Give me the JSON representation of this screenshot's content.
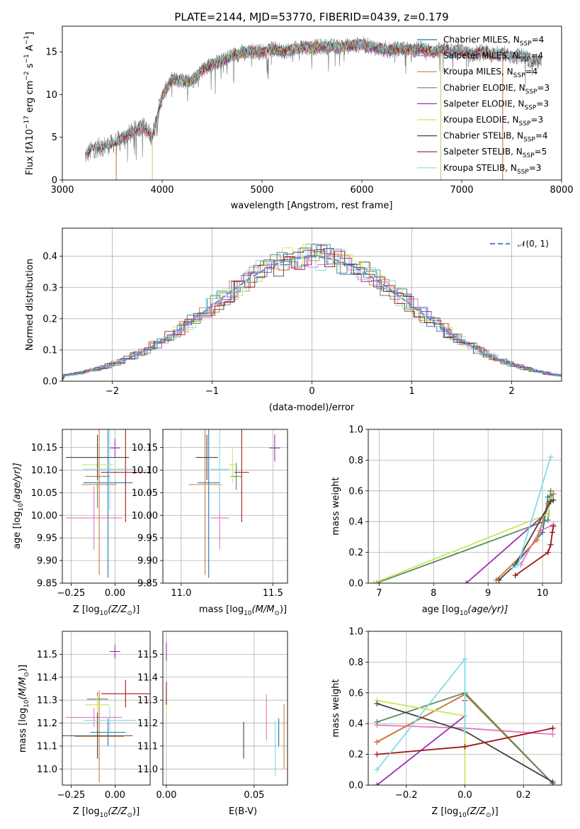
{
  "colors": {
    "Chabrier MILES": "#1f77b4",
    "Salpeter MILES": "#e377c2",
    "Kroupa MILES": "#d9782d",
    "Chabrier ELODIE": "#5f8a5f",
    "Salpeter ELODIE": "#9b30b0",
    "Kroupa ELODIE": "#c8e85a",
    "Chabrier STELIB": "#444444",
    "Salpeter STELIB": "#a01818",
    "Kroupa STELIB": "#80dde6",
    "pdf_line": "#5b8ee0"
  },
  "chart_data": [
    {
      "id": "spectrum",
      "type": "line",
      "title": "PLATE=2144, MJD=53770, FIBERID=0439, z=0.179",
      "xlabel": "wavelength [Angstrom, rest frame]",
      "ylabel_parts": [
        "Flux [f",
        "λ",
        "10",
        "−17",
        " erg cm",
        "−2",
        " s",
        "−1",
        " A",
        "−1",
        "]"
      ],
      "xlim": [
        3000,
        8000
      ],
      "ylim": [
        0,
        18
      ],
      "xticks": [
        "3000",
        "4000",
        "5000",
        "6000",
        "7000",
        "8000"
      ],
      "yticks": [
        "0",
        "5",
        "10",
        "15"
      ],
      "legend_position": "top-right",
      "legend": [
        {
          "label": "Chabrier MILES, N",
          "sub": "SSP",
          "tail": "=4"
        },
        {
          "label": "Salpeter MILES, N",
          "sub": "SSP",
          "tail": "=4"
        },
        {
          "label": "Kroupa MILES, N",
          "sub": "SSP",
          "tail": "=4"
        },
        {
          "label": "Chabrier ELODIE, N",
          "sub": "SSP",
          "tail": "=3"
        },
        {
          "label": "Salpeter ELODIE, N",
          "sub": "SSP",
          "tail": "=3"
        },
        {
          "label": "Kroupa ELODIE, N",
          "sub": "SSP",
          "tail": "=3"
        },
        {
          "label": "Chabrier STELIB, N",
          "sub": "SSP",
          "tail": "=4"
        },
        {
          "label": "Salpeter STELIB, N",
          "sub": "SSP",
          "tail": "=5"
        },
        {
          "label": "Kroupa STELIB, N",
          "sub": "SSP",
          "tail": "=3"
        }
      ],
      "data_points": {
        "x": [
          3230,
          3300,
          3400,
          3500,
          3600,
          3700,
          3800,
          3900,
          4000,
          4100,
          4200,
          4300,
          4400,
          4500,
          4600,
          4700,
          4800,
          4900,
          5000,
          5100,
          5200,
          5300,
          5400,
          5500,
          5600,
          5700,
          5800,
          5900,
          6000,
          6100,
          6200,
          6300,
          6400,
          6500,
          6600,
          6700,
          6800,
          6900,
          7000,
          7100,
          7200,
          7300,
          7400,
          7500,
          7600,
          7700,
          7800
        ],
        "y": [
          2.8,
          3.6,
          3.9,
          4.2,
          4.9,
          5.6,
          6.4,
          5.1,
          9.8,
          11.8,
          11.6,
          11.6,
          12.9,
          13.6,
          13.9,
          14.6,
          14.9,
          15.1,
          15.0,
          15.3,
          15.1,
          15.2,
          15.6,
          15.5,
          15.6,
          15.6,
          15.6,
          15.7,
          15.9,
          15.6,
          15.3,
          15.2,
          15.4,
          15.2,
          15.4,
          15.0,
          15.2,
          15.1,
          15.1,
          14.6,
          15.0,
          14.6,
          14.9,
          14.4,
          14.6,
          14.0,
          13.8
        ]
      }
    },
    {
      "id": "residuals",
      "type": "histogram",
      "xlabel": "(data-model)/error",
      "ylabel": "Normed distribution",
      "xlim": [
        -2.5,
        2.5
      ],
      "ylim": [
        0,
        0.49
      ],
      "grid": true,
      "xticks": [
        "−2",
        "−1",
        "0",
        "1",
        "2"
      ],
      "yticks": [
        "0.0",
        "0.1",
        "0.2",
        "0.3",
        "0.4"
      ],
      "legend_position": "top-right",
      "legend": "𝒩(0, 1)",
      "bin_width": 0.1,
      "bin_start": -2.5
    },
    {
      "id": "age_vs_Z",
      "type": "scatter",
      "xlabel_parts": [
        "Z [log",
        "10",
        "(Z/Z",
        "⊙",
        ")]"
      ],
      "ylabel_parts": [
        "age  [log",
        "10",
        "(age/yr)]"
      ],
      "xlim": [
        -0.3,
        0.2
      ],
      "ylim": [
        9.85,
        10.19
      ],
      "xticks": [
        "−0.25",
        "0.00"
      ],
      "yticks": [
        "9.85",
        "9.90",
        "9.95",
        "10.00",
        "10.05",
        "10.10",
        "10.15"
      ],
      "grid": true,
      "series": [
        {
          "name": "Chabrier MILES",
          "x": -0.04,
          "y": 10.072,
          "xerr": 0.14,
          "yerr": 0.21
        },
        {
          "name": "Salpeter MILES",
          "x": -0.12,
          "y": 9.994,
          "xerr": 0.16,
          "yerr": 0.07
        },
        {
          "name": "Kroupa MILES",
          "x": -0.09,
          "y": 10.068,
          "xerr": 0.1,
          "yerr": 0.2
        },
        {
          "name": "Chabrier ELODIE",
          "x": -0.1,
          "y": 10.086,
          "xerr": 0.07,
          "yerr": 0.07
        },
        {
          "name": "Salpeter ELODIE",
          "x": 0.0,
          "y": 10.149,
          "xerr": 0.03,
          "yerr": 0.02
        },
        {
          "name": "Kroupa ELODIE",
          "x": -0.1,
          "y": 10.112,
          "xerr": 0.09,
          "yerr": 0.04
        },
        {
          "name": "Chabrier STELIB",
          "x": -0.1,
          "y": 10.128,
          "xerr": 0.18,
          "yerr": 0.05
        },
        {
          "name": "Salpeter STELIB",
          "x": 0.06,
          "y": 10.095,
          "xerr": 0.14,
          "yerr": 0.11
        },
        {
          "name": "Kroupa STELIB",
          "x": -0.03,
          "y": 10.102,
          "xerr": 0.15,
          "yerr": 0.09
        }
      ]
    },
    {
      "id": "age_vs_mass",
      "type": "scatter",
      "xlabel_parts": [
        "mass [log",
        "10",
        "(M/M",
        "⊙",
        ")]"
      ],
      "xlim": [
        10.9,
        11.58
      ],
      "ylim": [
        9.85,
        10.19
      ],
      "xticks": [
        "11.0",
        "11.5"
      ],
      "yticks": [
        "9.85",
        "9.90",
        "9.95",
        "10.00",
        "10.05",
        "10.10",
        "10.15"
      ],
      "grid": true,
      "series": [
        {
          "name": "Chabrier MILES",
          "x": 11.15,
          "y": 10.072,
          "xerr": 0.06,
          "yerr": 0.21
        },
        {
          "name": "Salpeter MILES",
          "x": 11.21,
          "y": 9.994,
          "xerr": 0.05,
          "yerr": 0.07
        },
        {
          "name": "Kroupa MILES",
          "x": 11.13,
          "y": 10.068,
          "xerr": 0.09,
          "yerr": 0.2
        },
        {
          "name": "Chabrier ELODIE",
          "x": 11.3,
          "y": 10.086,
          "xerr": 0.03,
          "yerr": 0.03
        },
        {
          "name": "Salpeter ELODIE",
          "x": 11.51,
          "y": 10.149,
          "xerr": 0.03,
          "yerr": 0.03
        },
        {
          "name": "Kroupa ELODIE",
          "x": 11.28,
          "y": 10.112,
          "xerr": 0.02,
          "yerr": 0.04
        },
        {
          "name": "Chabrier STELIB",
          "x": 11.14,
          "y": 10.128,
          "xerr": 0.06,
          "yerr": 0.05
        },
        {
          "name": "Salpeter STELIB",
          "x": 11.33,
          "y": 10.095,
          "xerr": 0.04,
          "yerr": 0.11
        },
        {
          "name": "Kroupa STELIB",
          "x": 11.21,
          "y": 10.102,
          "xerr": 0.05,
          "yerr": 0.09
        }
      ]
    },
    {
      "id": "mass_weight_vs_age",
      "type": "line",
      "xlabel_parts": [
        "age  [log",
        "10",
        "(age/yr)]"
      ],
      "ylabel": "mass weight",
      "xlim": [
        6.8,
        10.35
      ],
      "ylim": [
        0,
        1
      ],
      "xticks": [
        "7",
        "8",
        "9",
        "10"
      ],
      "yticks": [
        "0.0",
        "0.2",
        "0.4",
        "0.6",
        "0.8",
        "1.0"
      ],
      "grid": true,
      "series": [
        {
          "name": "Chabrier MILES",
          "x": [
            9.5,
            10.0,
            10.1,
            10.2
          ],
          "y": [
            0.12,
            0.33,
            0.56,
            0.58
          ]
        },
        {
          "name": "Salpeter MILES",
          "x": [
            9.6,
            9.95,
            10.2
          ],
          "y": [
            0.12,
            0.34,
            0.38
          ]
        },
        {
          "name": "Kroupa MILES",
          "x": [
            9.15,
            9.9,
            10.1,
            10.2
          ],
          "y": [
            0.02,
            0.28,
            0.52,
            0.58
          ]
        },
        {
          "name": "Chabrier ELODIE",
          "x": [
            6.95,
            10.1,
            10.15
          ],
          "y": [
            0.0,
            0.41,
            0.6
          ]
        },
        {
          "name": "Salpeter ELODIE",
          "x": [
            8.6,
            10.05,
            10.15
          ],
          "y": [
            0.0,
            0.45,
            0.55
          ]
        },
        {
          "name": "Kroupa ELODIE",
          "x": [
            6.9,
            10.1,
            10.15
          ],
          "y": [
            0.0,
            0.45,
            0.55
          ]
        },
        {
          "name": "Chabrier STELIB",
          "x": [
            9.2,
            9.5,
            10.15,
            10.2
          ],
          "y": [
            0.02,
            0.12,
            0.53,
            0.54
          ]
        },
        {
          "name": "Salpeter STELIB",
          "x": [
            9.5,
            10.1,
            10.15,
            10.18,
            10.2
          ],
          "y": [
            0.05,
            0.2,
            0.25,
            0.33,
            0.37
          ]
        },
        {
          "name": "Kroupa STELIB",
          "x": [
            9.45,
            9.55,
            10.15
          ],
          "y": [
            0.1,
            0.12,
            0.82
          ]
        }
      ]
    },
    {
      "id": "mass_vs_Z",
      "type": "scatter",
      "xlabel_parts": [
        "Z [log",
        "10",
        "(Z/Z",
        "⊙",
        ")]"
      ],
      "ylabel_parts": [
        "mass [log",
        "10",
        "(M/M",
        "⊙",
        ")]"
      ],
      "xlim": [
        -0.3,
        0.2
      ],
      "ylim": [
        10.93,
        11.6
      ],
      "xticks": [
        "−0.25",
        "0.00"
      ],
      "yticks": [
        "11.0",
        "11.1",
        "11.2",
        "11.3",
        "11.4",
        "11.5"
      ],
      "grid": true,
      "series": [
        {
          "name": "Chabrier MILES",
          "x": -0.04,
          "y": 11.16,
          "xerr": 0.1,
          "yerr": 0.06
        },
        {
          "name": "Salpeter MILES",
          "x": -0.12,
          "y": 11.225,
          "xerr": 0.16,
          "yerr": 0.04
        },
        {
          "name": "Kroupa MILES",
          "x": -0.09,
          "y": 11.142,
          "xerr": 0.14,
          "yerr": 0.2
        },
        {
          "name": "Chabrier ELODIE",
          "x": -0.1,
          "y": 11.305,
          "xerr": 0.06,
          "yerr": 0.03
        },
        {
          "name": "Salpeter ELODIE",
          "x": 0.0,
          "y": 11.512,
          "xerr": 0.03,
          "yerr": 0.03
        },
        {
          "name": "Kroupa ELODIE",
          "x": -0.1,
          "y": 11.28,
          "xerr": 0.07,
          "yerr": 0.04
        },
        {
          "name": "Chabrier STELIB",
          "x": -0.1,
          "y": 11.145,
          "xerr": 0.2,
          "yerr": 0.1
        },
        {
          "name": "Salpeter STELIB",
          "x": 0.06,
          "y": 11.328,
          "xerr": 0.14,
          "yerr": 0.06
        },
        {
          "name": "Kroupa STELIB",
          "x": -0.03,
          "y": 11.212,
          "xerr": 0.15,
          "yerr": 0.06
        }
      ]
    },
    {
      "id": "mass_vs_ebv",
      "type": "scatter",
      "xlabel": "E(B-V)",
      "xlim": [
        -0.002,
        0.069
      ],
      "ylim": [
        10.93,
        11.6
      ],
      "xticks": [
        "0.00",
        "0.05"
      ],
      "yticks": [
        "11.0",
        "11.1",
        "11.2",
        "11.3",
        "11.4",
        "11.5"
      ],
      "grid": true,
      "series": [
        {
          "name": "Chabrier MILES",
          "x": 0.064,
          "y": 11.16,
          "xerr": 0.0,
          "yerr": 0.06
        },
        {
          "name": "Salpeter MILES",
          "x": 0.057,
          "y": 11.225,
          "xerr": 0.0,
          "yerr": 0.1
        },
        {
          "name": "Kroupa MILES",
          "x": 0.067,
          "y": 11.142,
          "xerr": 0.0,
          "yerr": 0.14
        },
        {
          "name": "Chabrier ELODIE",
          "x": 0.0,
          "y": 11.305,
          "xerr": 0.0,
          "yerr": 0.03
        },
        {
          "name": "Salpeter ELODIE",
          "x": 0.0,
          "y": 11.512,
          "xerr": 0.0,
          "yerr": 0.04
        },
        {
          "name": "Kroupa ELODIE",
          "x": 0.0,
          "y": 11.28,
          "xerr": 0.0,
          "yerr": 0.03
        },
        {
          "name": "Chabrier STELIB",
          "x": 0.044,
          "y": 11.125,
          "xerr": 0.0,
          "yerr": 0.08
        },
        {
          "name": "Salpeter STELIB",
          "x": 0.0,
          "y": 11.33,
          "xerr": 0.0,
          "yerr": 0.05
        },
        {
          "name": "Kroupa STELIB",
          "x": 0.062,
          "y": 11.09,
          "xerr": 0.0,
          "yerr": 0.12
        }
      ]
    },
    {
      "id": "mass_weight_vs_Z",
      "type": "line",
      "xlabel_parts": [
        "Z [log",
        "10",
        "(Z/Z",
        "⊙",
        ")]"
      ],
      "ylabel": "mass weight",
      "xlim": [
        -0.33,
        0.33
      ],
      "ylim": [
        0,
        1
      ],
      "xticks": [
        "−0.2",
        "0.0",
        "0.2"
      ],
      "yticks": [
        "0.0",
        "0.2",
        "0.4",
        "0.6",
        "0.8",
        "1.0"
      ],
      "grid": true,
      "series": [
        {
          "name": "Chabrier MILES",
          "x": [
            -0.3,
            0.0,
            0.3
          ],
          "y": [
            0.28,
            0.59,
            0.01
          ]
        },
        {
          "name": "Salpeter MILES",
          "x": [
            -0.3,
            0.0,
            0.3
          ],
          "y": [
            0.39,
            0.37,
            0.33
          ]
        },
        {
          "name": "Kroupa MILES",
          "x": [
            -0.3,
            0.0,
            0.3
          ],
          "y": [
            0.28,
            0.59,
            0.01
          ]
        },
        {
          "name": "Chabrier ELODIE",
          "x": [
            -0.3,
            0.0,
            0.3
          ],
          "y": [
            0.41,
            0.6,
            0.01
          ]
        },
        {
          "name": "Salpeter ELODIE",
          "x": [
            -0.3,
            0.0,
            0.0
          ],
          "y": [
            0.0,
            0.45,
            0.55
          ]
        },
        {
          "name": "Kroupa ELODIE",
          "x": [
            -0.3,
            0.0,
            0.0
          ],
          "y": [
            0.55,
            0.45,
            0.0
          ]
        },
        {
          "name": "Chabrier STELIB",
          "x": [
            -0.3,
            0.0,
            0.3
          ],
          "y": [
            0.53,
            0.35,
            0.02
          ]
        },
        {
          "name": "Salpeter STELIB",
          "x": [
            -0.3,
            0.0,
            0.3
          ],
          "y": [
            0.2,
            0.25,
            0.37
          ]
        },
        {
          "name": "Kroupa STELIB",
          "x": [
            -0.3,
            0.0,
            0.0
          ],
          "y": [
            0.1,
            0.82,
            0.35
          ]
        }
      ]
    }
  ]
}
